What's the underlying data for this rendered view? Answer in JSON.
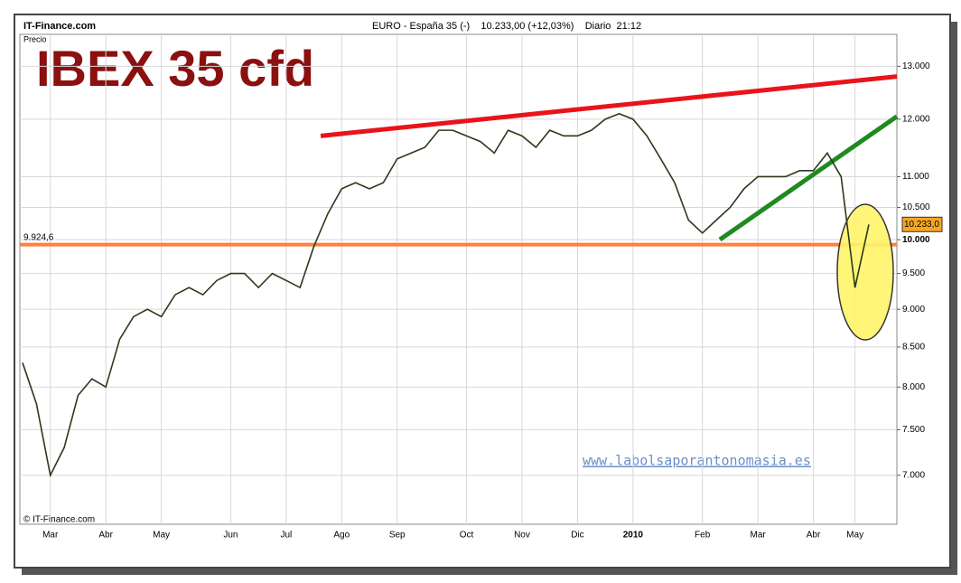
{
  "chart_data": {
    "type": "line",
    "source": "IT-Finance.com",
    "header": "EURO - España 35 (-)    10.233,00 (+12,03%)    Diario  21:12",
    "axis_label": "Precio",
    "title": "IBEX 35 cfd",
    "copyright": "© IT-Finance.com",
    "watermark": "www.labolsaporantonomasia.es",
    "log_scale": true,
    "grid": true,
    "categories": [
      null,
      null,
      "Mar",
      null,
      null,
      null,
      "Abr",
      null,
      null,
      null,
      "May",
      null,
      null,
      null,
      null,
      "Jun",
      null,
      null,
      null,
      "Jul",
      null,
      null,
      null,
      "Ago",
      null,
      null,
      null,
      "Sep",
      null,
      null,
      null,
      null,
      "Oct",
      null,
      null,
      null,
      "Nov",
      null,
      null,
      null,
      "Dic",
      null,
      null,
      null,
      "2010",
      null,
      null,
      null,
      null,
      "Feb",
      null,
      null,
      null,
      "Mar",
      null,
      null,
      null,
      "Abr",
      null,
      null,
      "May",
      null
    ],
    "series": [
      {
        "name": "IBEX 35",
        "color": "#2a3a1a",
        "values": [
          8300,
          7800,
          7000,
          7300,
          7900,
          8100,
          8000,
          8600,
          8900,
          9000,
          8900,
          9200,
          9300,
          9200,
          9400,
          9500,
          9500,
          9300,
          9500,
          9400,
          9300,
          9900,
          10400,
          10800,
          10900,
          10800,
          10900,
          11300,
          11400,
          11500,
          11800,
          11800,
          11700,
          11600,
          11400,
          11800,
          11700,
          11500,
          11800,
          11700,
          11700,
          11800,
          12000,
          12100,
          12000,
          11700,
          11300,
          10900,
          10300,
          10100,
          10300,
          10500,
          10800,
          11000,
          11000,
          11000,
          11100,
          11100,
          11400,
          11000,
          9300,
          10233
        ]
      }
    ],
    "ylim": [
      6500,
      13700
    ],
    "yticks": [
      {
        "value": 7000,
        "label": "7.000"
      },
      {
        "value": 7500,
        "label": "7.500"
      },
      {
        "value": 8000,
        "label": "8.000"
      },
      {
        "value": 8500,
        "label": "8.500"
      },
      {
        "value": 9000,
        "label": "9.000"
      },
      {
        "value": 9500,
        "label": "9.500"
      },
      {
        "value": 10000,
        "label": "10.000"
      },
      {
        "value": 10500,
        "label": "10.500"
      },
      {
        "value": 11000,
        "label": "11.000"
      },
      {
        "value": 12000,
        "label": "12.000"
      },
      {
        "value": 13000,
        "label": "13.000"
      }
    ],
    "support": {
      "value": 9924.6,
      "label": "9.924,6",
      "color": "#ff7f3f"
    },
    "last_price": {
      "value": 10233,
      "label": "10.233,0",
      "color": "#f5a623"
    },
    "trendlines": [
      {
        "color": "#e8141a",
        "values": [
          11700,
          12800
        ]
      },
      {
        "color": "#1f8a1f",
        "values": [
          10000,
          12050
        ]
      }
    ]
  }
}
